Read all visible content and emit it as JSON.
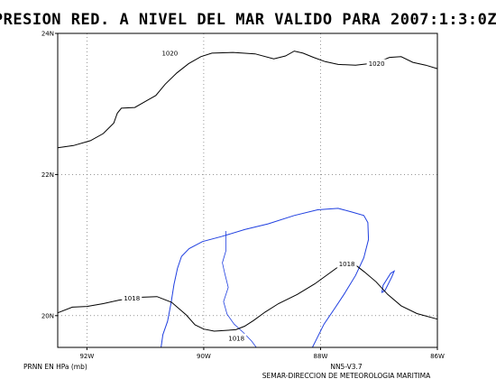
{
  "title": "PRESION RED. A NIVEL DEL MAR VALIDO PARA 2007:1:3:0Z",
  "colors": {
    "background": "#ffffff",
    "isobar": "#000000",
    "coastline": "#1f3fe0",
    "grid": "#555555",
    "frame": "#000000"
  },
  "map": {
    "lon_range": [
      -92.5,
      -86
    ],
    "lat_range": [
      19.55,
      24
    ],
    "lon_ticks": [
      {
        "value": -92,
        "label": "92W"
      },
      {
        "value": -90,
        "label": "90W"
      },
      {
        "value": -88,
        "label": "88W"
      },
      {
        "value": -86,
        "label": "86W"
      }
    ],
    "lat_ticks": [
      {
        "value": 24,
        "label": "24N"
      },
      {
        "value": 22,
        "label": "22N"
      },
      {
        "value": 20,
        "label": "20N"
      }
    ],
    "grid": "dotted"
  },
  "isobars": [
    {
      "value": 1020,
      "labels": [
        {
          "text": "1020",
          "lon": -90.58,
          "lat": 23.72
        },
        {
          "text": "1020",
          "lon": -87.04,
          "lat": 23.57
        }
      ],
      "points": [
        [
          -92.5,
          22.38
        ],
        [
          -92.23,
          22.41
        ],
        [
          -91.94,
          22.48
        ],
        [
          -91.72,
          22.58
        ],
        [
          -91.54,
          22.73
        ],
        [
          -91.48,
          22.87
        ],
        [
          -91.41,
          22.94
        ],
        [
          -91.18,
          22.95
        ],
        [
          -90.97,
          23.05
        ],
        [
          -90.82,
          23.12
        ],
        [
          -90.66,
          23.28
        ],
        [
          -90.46,
          23.44
        ],
        [
          -90.26,
          23.57
        ],
        [
          -90.05,
          23.67
        ],
        [
          -89.86,
          23.72
        ],
        [
          -89.5,
          23.73
        ],
        [
          -89.12,
          23.71
        ],
        [
          -88.8,
          23.64
        ],
        [
          -88.6,
          23.68
        ],
        [
          -88.45,
          23.75
        ],
        [
          -88.3,
          23.72
        ],
        [
          -88.12,
          23.66
        ],
        [
          -87.92,
          23.6
        ],
        [
          -87.7,
          23.56
        ],
        [
          -87.4,
          23.55
        ],
        [
          -87.18,
          23.57
        ],
        [
          -87.0,
          23.6
        ],
        [
          -86.82,
          23.66
        ],
        [
          -86.62,
          23.67
        ],
        [
          -86.42,
          23.59
        ],
        [
          -86.2,
          23.55
        ],
        [
          -86.0,
          23.5
        ]
      ]
    },
    {
      "value": 1018,
      "labels": [
        {
          "text": "1018",
          "lon": -91.23,
          "lat": 20.25
        },
        {
          "text": "1018",
          "lon": -89.44,
          "lat": 19.68
        },
        {
          "text": "1018",
          "lon": -87.55,
          "lat": 20.73
        }
      ],
      "points": [
        [
          -92.5,
          20.04
        ],
        [
          -92.25,
          20.12
        ],
        [
          -92.0,
          20.13
        ],
        [
          -91.72,
          20.17
        ],
        [
          -91.45,
          20.22
        ],
        [
          -91.1,
          20.26
        ],
        [
          -90.8,
          20.27
        ],
        [
          -90.55,
          20.19
        ],
        [
          -90.3,
          20.01
        ],
        [
          -90.15,
          19.87
        ],
        [
          -90.0,
          19.81
        ],
        [
          -89.82,
          19.78
        ],
        [
          -89.64,
          19.79
        ],
        [
          -89.45,
          19.8
        ],
        [
          -89.3,
          19.85
        ],
        [
          -89.15,
          19.93
        ],
        [
          -88.95,
          20.05
        ],
        [
          -88.72,
          20.17
        ],
        [
          -88.4,
          20.3
        ],
        [
          -88.1,
          20.45
        ],
        [
          -87.85,
          20.6
        ],
        [
          -87.65,
          20.72
        ],
        [
          -87.45,
          20.75
        ],
        [
          -87.25,
          20.62
        ],
        [
          -87.05,
          20.48
        ],
        [
          -86.85,
          20.3
        ],
        [
          -86.62,
          20.14
        ],
        [
          -86.35,
          20.03
        ],
        [
          -86.0,
          19.95
        ]
      ]
    }
  ],
  "coastline": [
    [
      -90.73,
      19.55
    ],
    [
      -90.7,
      19.73
    ],
    [
      -90.62,
      19.92
    ],
    [
      -90.56,
      20.18
    ],
    [
      -90.51,
      20.44
    ],
    [
      -90.45,
      20.67
    ],
    [
      -90.38,
      20.84
    ],
    [
      -90.25,
      20.95
    ],
    [
      -90.02,
      21.05
    ],
    [
      -89.7,
      21.12
    ],
    [
      -89.3,
      21.22
    ],
    [
      -88.9,
      21.3
    ],
    [
      -88.45,
      21.42
    ],
    [
      -88.05,
      21.5
    ],
    [
      -87.7,
      21.52
    ],
    [
      -87.47,
      21.47
    ],
    [
      -87.26,
      21.42
    ],
    [
      -87.19,
      21.32
    ],
    [
      -87.18,
      21.08
    ],
    [
      -87.26,
      20.82
    ],
    [
      -87.4,
      20.57
    ],
    [
      -87.6,
      20.3
    ],
    [
      -87.76,
      20.1
    ],
    [
      -87.94,
      19.88
    ],
    [
      -88.09,
      19.63
    ],
    [
      -88.14,
      19.55
    ]
  ],
  "coastline_island": [
    [
      -86.9,
      20.35
    ],
    [
      -86.78,
      20.55
    ],
    [
      -86.74,
      20.63
    ],
    [
      -86.8,
      20.6
    ],
    [
      -86.93,
      20.43
    ],
    [
      -86.95,
      20.33
    ],
    [
      -86.9,
      20.35
    ]
  ],
  "state_border": [
    [
      -89.62,
      21.2
    ],
    [
      -89.62,
      20.92
    ],
    [
      -89.68,
      20.75
    ],
    [
      -89.64,
      20.6
    ],
    [
      -89.58,
      20.4
    ],
    [
      -89.66,
      20.2
    ],
    [
      -89.6,
      20.02
    ],
    [
      -89.48,
      19.88
    ],
    [
      -89.32,
      19.76
    ],
    [
      -89.18,
      19.64
    ],
    [
      -89.1,
      19.55
    ]
  ],
  "footer": {
    "left": "PRNN EN HPa (mb)",
    "right_line1": "NN5-V3.7",
    "right_line2": "SEMAR-DIRECCION DE METEOROLOGIA MARITIMA"
  }
}
